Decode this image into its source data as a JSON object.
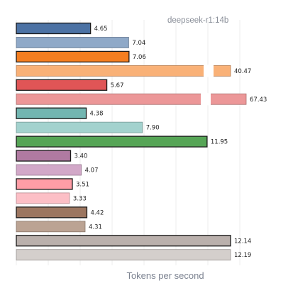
{
  "chart_data": {
    "type": "bar",
    "orientation": "horizontal",
    "subtitle": "deepseek-r1:14b",
    "xlabel": "Tokens per second",
    "ylabel": "",
    "grid": true,
    "axis_break": true,
    "value_labels": [
      "4.65",
      "7.04",
      "7.06",
      "40.47",
      "5.67",
      "67.43",
      "4.38",
      "7.90",
      "11.95",
      "3.40",
      "4.07",
      "3.51",
      "3.33",
      "4.42",
      "4.31",
      "12.14",
      "12.19"
    ],
    "values": [
      4.65,
      7.04,
      7.06,
      40.47,
      5.67,
      67.43,
      4.38,
      7.9,
      11.95,
      3.4,
      4.07,
      3.51,
      3.33,
      4.42,
      4.31,
      12.14,
      12.19
    ],
    "colors": [
      "#4c72a4",
      "#8fa9c8",
      "#f47e20",
      "#f9b177",
      "#e05556",
      "#ec9798",
      "#72b6b1",
      "#a3d2ce",
      "#56a556",
      "#b07aa1",
      "#d2a8c8",
      "#ff9da6",
      "#fcbfc6",
      "#9c7660",
      "#bba393",
      "#bab0ac",
      "#d4cfcc"
    ],
    "highlighted": [
      true,
      false,
      true,
      false,
      true,
      false,
      true,
      false,
      true,
      true,
      false,
      true,
      false,
      true,
      false,
      true,
      false
    ]
  }
}
